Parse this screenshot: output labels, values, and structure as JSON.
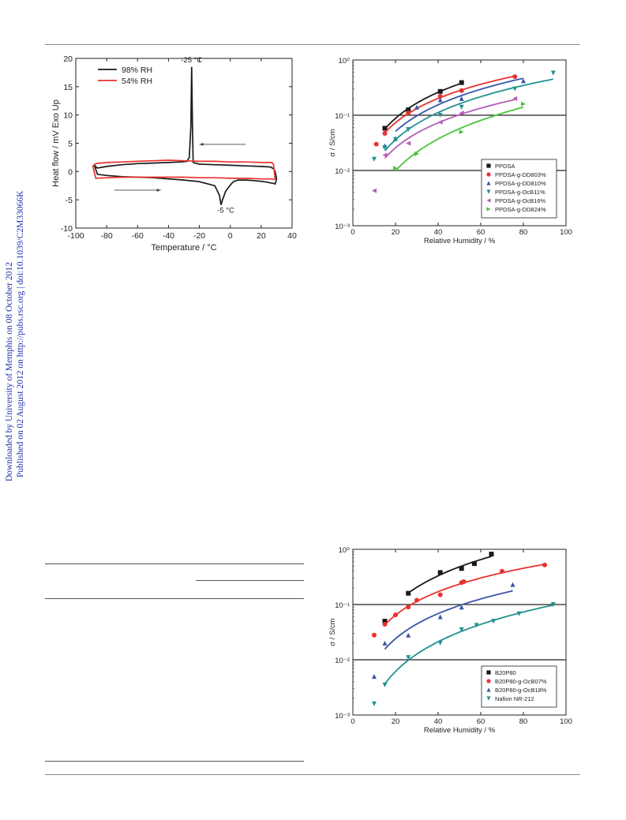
{
  "sidebar": {
    "line1": "Downloaded by University of Memphis on 08 October 2012",
    "line2": "Published on 02 August 2012 on http://pubs.rsc.org | doi:10.1039/C2M33066K"
  },
  "colors": {
    "black": "#1a1a1a",
    "red": "#e8322e",
    "blue": "#3a55a8",
    "teal": "#23918f",
    "magenta": "#b35bb8",
    "green": "#4cc43c"
  },
  "chart_data": [
    {
      "type": "line",
      "title": "",
      "xlabel": "Temperature / °C",
      "ylabel": "Heat flow / mV  Exo Up",
      "xlim": [
        -100,
        40
      ],
      "ylim": [
        -10,
        20
      ],
      "xticks": [
        "-100",
        "-80",
        "-60",
        "-40",
        "-20",
        "0",
        "20",
        "40"
      ],
      "yticks": [
        "20",
        "15",
        "10",
        "5",
        "0",
        "-5",
        "-10"
      ],
      "legend": "top-left",
      "series": [
        {
          "name": "98% RH",
          "color": "#1a1a1a",
          "x": [
            -88,
            -86,
            -80,
            -70,
            -60,
            -50,
            -40,
            -32,
            -28,
            -26.5,
            -25.5,
            -25,
            -24.5,
            -24,
            -20,
            -10,
            0,
            10,
            20,
            26,
            28,
            29,
            30,
            29,
            28,
            26,
            22,
            15,
            10,
            5,
            2,
            0,
            -3,
            -5,
            -6,
            -7,
            -10,
            -20,
            -30,
            -40,
            -50,
            -60,
            -70,
            -80,
            -86,
            -88
          ],
          "y": [
            1.1,
            0.6,
            0.9,
            1.2,
            1.4,
            1.5,
            1.6,
            1.7,
            1.8,
            2.5,
            8,
            18.5,
            8,
            1.6,
            1.3,
            1.2,
            1.1,
            1.0,
            0.9,
            0.8,
            0.5,
            0,
            -1.3,
            -2.2,
            -2.1,
            -2.0,
            -1.8,
            -1.6,
            -1.5,
            -1.5,
            -1.8,
            -2.4,
            -3.5,
            -5.0,
            -5.9,
            -4.2,
            -2.5,
            -1.8,
            -1.5,
            -1.3,
            -1.1,
            -1.0,
            -0.9,
            -0.7,
            -0.5,
            1.1
          ]
        },
        {
          "name": "54% RH",
          "color": "#e8322e",
          "x": [
            -89,
            -87,
            -80,
            -70,
            -60,
            -50,
            -40,
            -30,
            -20,
            -10,
            0,
            10,
            20,
            27,
            28,
            29,
            28,
            26,
            20,
            10,
            0,
            -10,
            -20,
            -30,
            -40,
            -50,
            -60,
            -70,
            -80,
            -87,
            -89
          ],
          "y": [
            1.0,
            1.4,
            1.6,
            1.7,
            1.8,
            1.9,
            2.0,
            1.9,
            1.8,
            1.8,
            1.7,
            1.7,
            1.6,
            1.6,
            1.2,
            -1.3,
            -1.4,
            -1.3,
            -1.3,
            -1.2,
            -1.2,
            -1.1,
            -1.1,
            -1.0,
            -1.0,
            -1.0,
            -1.0,
            -1.0,
            -1.1,
            -1.2,
            1.0
          ]
        }
      ],
      "annotations": [
        "-25 °C",
        "-5 °C"
      ]
    },
    {
      "type": "scatter",
      "title": "",
      "xlabel": "Relative Humidity / %",
      "ylabel": "σ / S/cm",
      "xlim": [
        0,
        100
      ],
      "ylim_log10": [
        -3,
        0
      ],
      "xticks": [
        "0",
        "20",
        "40",
        "60",
        "80",
        "100"
      ],
      "yticks": [
        "10⁰",
        "10⁻¹",
        "10⁻²",
        "10⁻³"
      ],
      "legend": "bottom-right",
      "series": [
        {
          "name": "PPDSA",
          "color": "#1a1a1a",
          "marker": "square",
          "x": [
            15,
            26,
            41,
            51
          ],
          "y": [
            0.058,
            0.125,
            0.27,
            0.39
          ]
        },
        {
          "name": "PPDSA-g-DD803%",
          "color": "#e8322e",
          "marker": "circle",
          "x": [
            11,
            15,
            26,
            41,
            51,
            76
          ],
          "y": [
            0.03,
            0.047,
            0.11,
            0.22,
            0.28,
            0.5
          ]
        },
        {
          "name": "PPDSA-g-DD810%",
          "color": "#3a55a8",
          "marker": "triangle-up",
          "x": [
            15,
            20,
            30,
            41,
            51,
            80
          ],
          "y": [
            0.028,
            0.038,
            0.14,
            0.19,
            0.2,
            0.42
          ]
        },
        {
          "name": "PPDSA-g-OcB11%",
          "color": "#23918f",
          "marker": "triangle-down",
          "x": [
            10,
            15,
            20,
            26,
            41,
            51,
            76,
            94
          ],
          "y": [
            0.016,
            0.026,
            0.036,
            0.055,
            0.1,
            0.14,
            0.3,
            0.58
          ]
        },
        {
          "name": "PPDSA-g-OcB16%",
          "color": "#b35bb8",
          "marker": "triangle-left",
          "x": [
            10,
            15,
            26,
            41,
            51,
            76
          ],
          "y": [
            0.0043,
            0.019,
            0.031,
            0.075,
            0.11,
            0.2
          ]
        },
        {
          "name": "PPDSA-g-DD824%",
          "color": "#4cc43c",
          "marker": "triangle-right",
          "x": [
            20,
            30,
            51,
            80
          ],
          "y": [
            0.011,
            0.02,
            0.05,
            0.16
          ]
        }
      ],
      "hlines": [
        0.1,
        0.01
      ]
    },
    {
      "type": "scatter",
      "title": "",
      "xlabel": "Relative Humidity / %",
      "ylabel": "σ / S/cm",
      "xlim": [
        0,
        100
      ],
      "ylim_log10": [
        -3,
        0
      ],
      "xticks": [
        "0",
        "20",
        "40",
        "60",
        "80",
        "100"
      ],
      "yticks": [
        "10⁰",
        "10⁻¹",
        "10⁻²",
        "10⁻³"
      ],
      "legend": "bottom-right",
      "series": [
        {
          "name": "B20P80",
          "color": "#1a1a1a",
          "marker": "square",
          "x": [
            15,
            26,
            41,
            51,
            57,
            65
          ],
          "y": [
            0.05,
            0.16,
            0.38,
            0.45,
            0.55,
            0.82
          ]
        },
        {
          "name": "B20P80-g-OcB07%",
          "color": "#e8322e",
          "marker": "circle",
          "x": [
            10,
            15,
            20,
            26,
            30,
            41,
            51,
            52,
            70,
            90
          ],
          "y": [
            0.028,
            0.044,
            0.065,
            0.09,
            0.12,
            0.15,
            0.25,
            0.26,
            0.4,
            0.52
          ]
        },
        {
          "name": "B20P80-g-OcB18%",
          "color": "#3a55a8",
          "marker": "triangle-up",
          "x": [
            10,
            15,
            26,
            41,
            51,
            75
          ],
          "y": [
            0.005,
            0.02,
            0.028,
            0.06,
            0.09,
            0.23
          ]
        },
        {
          "name": "Nafion NR-212",
          "color": "#23918f",
          "marker": "triangle-down",
          "x": [
            10,
            15,
            26,
            41,
            51,
            58,
            66,
            78,
            94
          ],
          "y": [
            0.0016,
            0.0035,
            0.011,
            0.02,
            0.035,
            0.042,
            0.05,
            0.068,
            0.1
          ]
        }
      ],
      "hlines": [
        0.1,
        0.01
      ]
    }
  ]
}
